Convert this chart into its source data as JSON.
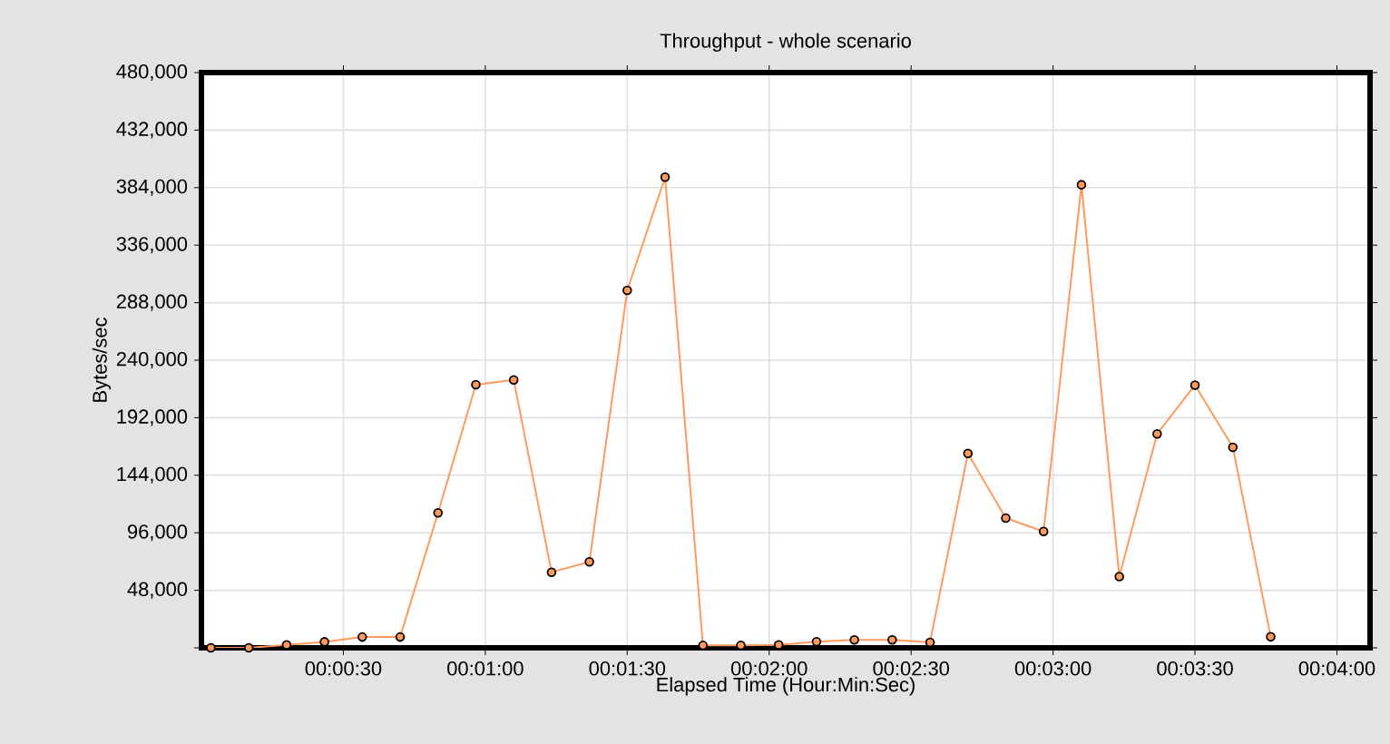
{
  "chart_data": {
    "type": "line",
    "title": "Throughput - whole scenario",
    "xlabel": "Elapsed Time (Hour:Min:Sec)",
    "ylabel": "Bytes/sec",
    "x": [
      0.000556,
      0.002778,
      0.005,
      0.007222,
      0.009444,
      0.011667,
      0.013889,
      0.016111,
      0.018333,
      0.020556,
      0.022778,
      0.025,
      0.027222,
      0.029444,
      0.031667,
      0.033889,
      0.036111,
      0.038333,
      0.040556,
      0.042778,
      0.045,
      0.047222,
      0.049444,
      0.051667,
      0.053889,
      0.056111,
      0.058333,
      0.060556,
      0.062778
    ],
    "series": [
      {
        "color": "#ff9a5c",
        "values": [
          0,
          0,
          2500,
          5000,
          9000,
          9000,
          112600,
          219600,
          223600,
          63100,
          71700,
          298300,
          392700,
          2000,
          2000,
          2500,
          5100,
          6600,
          6600,
          4600,
          162200,
          108300,
          97100,
          386400,
          59500,
          178500,
          219200,
          167300,
          9200
        ]
      }
    ],
    "xlim": [
      0,
      0.068611
    ],
    "xticks": [
      {
        "value": 0.008333,
        "label": "00:00:30"
      },
      {
        "value": 0.016667,
        "label": "00:01:00"
      },
      {
        "value": 0.025,
        "label": "00:01:30"
      },
      {
        "value": 0.033333,
        "label": "00:02:00"
      },
      {
        "value": 0.041667,
        "label": "00:02:30"
      },
      {
        "value": 0.05,
        "label": "00:03:00"
      },
      {
        "value": 0.058333,
        "label": "00:03:30"
      },
      {
        "value": 0.066667,
        "label": "00:04:00"
      }
    ],
    "ylim": [
      0,
      480000
    ],
    "yticks": [
      {
        "value": 0,
        "label": null
      },
      {
        "value": 48000,
        "label": "48,000"
      },
      {
        "value": 96000,
        "label": "96,000"
      },
      {
        "value": 144000,
        "label": "144,000"
      },
      {
        "value": 192000,
        "label": "192,000"
      },
      {
        "value": 240000,
        "label": "240,000"
      },
      {
        "value": 288000,
        "label": "288,000"
      },
      {
        "value": 336000,
        "label": "336,000"
      },
      {
        "value": 384000,
        "label": "384,000"
      },
      {
        "value": 432000,
        "label": "432,000"
      },
      {
        "value": 480000,
        "label": "480,000"
      }
    ],
    "grid": true,
    "legend": false,
    "marker": "circle",
    "line_style": "solid"
  }
}
